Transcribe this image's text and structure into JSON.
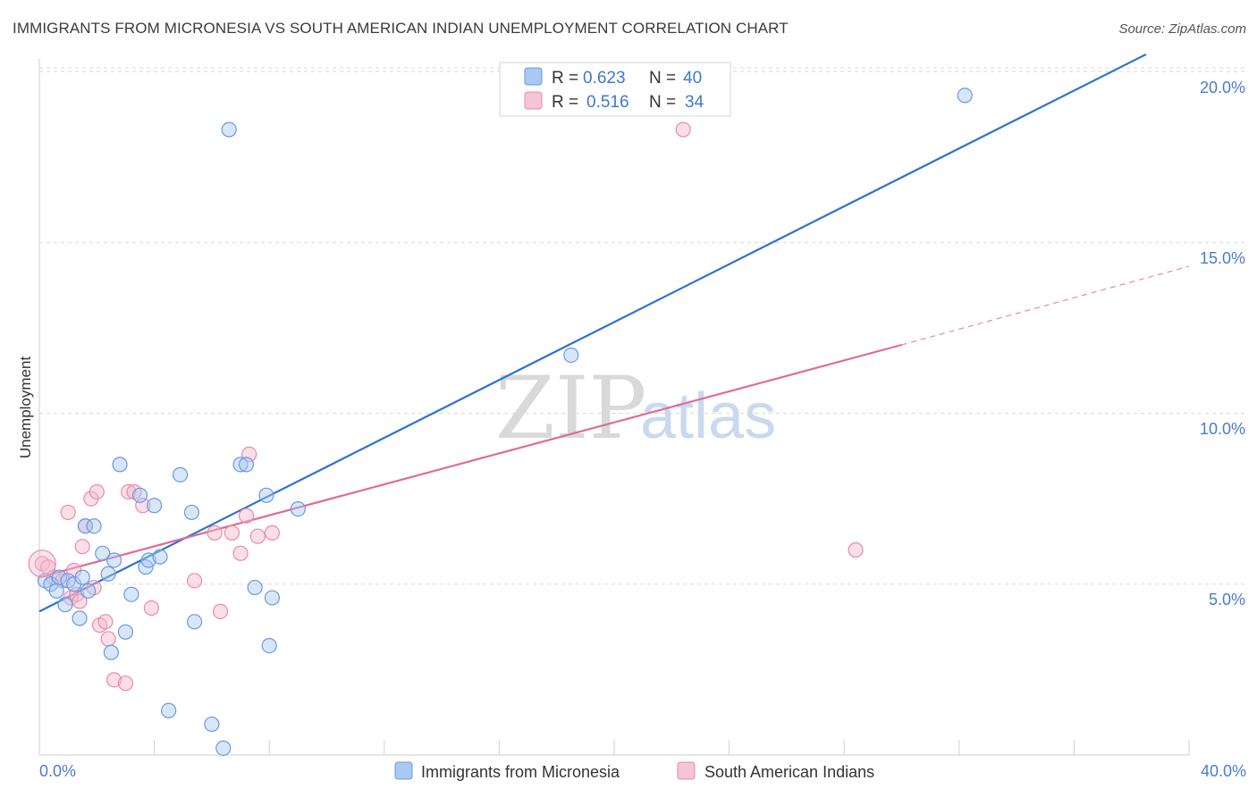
{
  "title": "IMMIGRANTS FROM MICRONESIA VS SOUTH AMERICAN INDIAN UNEMPLOYMENT CORRELATION CHART",
  "source": "Source: ZipAtlas.com",
  "watermark": {
    "part1": "ZIP",
    "part2": "atlas"
  },
  "colors": {
    "blue_fill": "#a9c8f2",
    "blue_stroke": "#6a9ae0",
    "blue_line": "#2f72cc",
    "pink_fill": "#f6b8cc",
    "pink_stroke": "#e98aa8",
    "pink_line": "#e06b96",
    "grid": "#d8d8d8",
    "tick_text": "#4a7bd1"
  },
  "legend": {
    "rows": [
      {
        "r_label": "R =",
        "r_value": "0.623",
        "n_label": "N =",
        "n_value": "40",
        "series": "blue"
      },
      {
        "r_label": "R =",
        "r_value": "0.516",
        "n_label": "N =",
        "n_value": "34",
        "series": "pink"
      }
    ]
  },
  "chart_data": {
    "type": "scatter",
    "title": "IMMIGRANTS FROM MICRONESIA VS SOUTH AMERICAN INDIAN UNEMPLOYMENT CORRELATION CHART",
    "xlabel": "",
    "ylabel": "Unemployment",
    "xlim": [
      0,
      40
    ],
    "ylim": [
      0,
      20.5
    ],
    "x_tick_labels": [
      "0.0%",
      "40.0%"
    ],
    "y_ticks": [
      5,
      10,
      15,
      20
    ],
    "y_tick_labels": [
      "5.0%",
      "10.0%",
      "15.0%",
      "20.0%"
    ],
    "grid": true,
    "legend_position": "bottom",
    "series": [
      {
        "name": "Immigrants from Micronesia",
        "color": "blue",
        "R": 0.623,
        "N": 40,
        "trendline": {
          "x": [
            0,
            38.5
          ],
          "y": [
            4.2,
            20.5
          ]
        },
        "points": [
          {
            "x": 0.2,
            "y": 5.1
          },
          {
            "x": 0.4,
            "y": 5.0
          },
          {
            "x": 0.6,
            "y": 4.8
          },
          {
            "x": 0.7,
            "y": 5.2
          },
          {
            "x": 0.9,
            "y": 4.4
          },
          {
            "x": 1.0,
            "y": 5.1
          },
          {
            "x": 1.2,
            "y": 5.0
          },
          {
            "x": 1.4,
            "y": 4.0
          },
          {
            "x": 1.5,
            "y": 5.2
          },
          {
            "x": 1.6,
            "y": 6.7
          },
          {
            "x": 1.7,
            "y": 4.8
          },
          {
            "x": 1.9,
            "y": 6.7
          },
          {
            "x": 2.2,
            "y": 5.9
          },
          {
            "x": 2.4,
            "y": 5.3
          },
          {
            "x": 2.5,
            "y": 3.0
          },
          {
            "x": 2.6,
            "y": 5.7
          },
          {
            "x": 2.8,
            "y": 8.5
          },
          {
            "x": 3.0,
            "y": 3.6
          },
          {
            "x": 3.2,
            "y": 4.7
          },
          {
            "x": 3.5,
            "y": 7.6
          },
          {
            "x": 3.7,
            "y": 5.5
          },
          {
            "x": 3.8,
            "y": 5.7
          },
          {
            "x": 4.0,
            "y": 7.3
          },
          {
            "x": 4.2,
            "y": 5.8
          },
          {
            "x": 4.5,
            "y": 1.3
          },
          {
            "x": 4.9,
            "y": 8.2
          },
          {
            "x": 5.3,
            "y": 7.1
          },
          {
            "x": 5.4,
            "y": 3.9
          },
          {
            "x": 6.0,
            "y": 0.9
          },
          {
            "x": 6.4,
            "y": 0.2
          },
          {
            "x": 6.6,
            "y": 18.3
          },
          {
            "x": 7.0,
            "y": 8.5
          },
          {
            "x": 7.2,
            "y": 8.5
          },
          {
            "x": 7.5,
            "y": 4.9
          },
          {
            "x": 7.9,
            "y": 7.6
          },
          {
            "x": 8.0,
            "y": 3.2
          },
          {
            "x": 8.1,
            "y": 4.6
          },
          {
            "x": 9.0,
            "y": 7.2
          },
          {
            "x": 18.5,
            "y": 11.7
          },
          {
            "x": 32.2,
            "y": 19.3
          }
        ]
      },
      {
        "name": "South American Indians",
        "color": "pink",
        "R": 0.516,
        "N": 34,
        "trendline": {
          "x": [
            0,
            30
          ],
          "y": [
            5.2,
            12.0
          ]
        },
        "trendline_dashed_extension": {
          "x": [
            30,
            40
          ],
          "y": [
            12.0,
            14.3
          ]
        },
        "points": [
          {
            "x": 0.1,
            "y": 5.6
          },
          {
            "x": 0.3,
            "y": 5.5
          },
          {
            "x": 0.5,
            "y": 5.2
          },
          {
            "x": 0.8,
            "y": 5.1
          },
          {
            "x": 1.0,
            "y": 7.1
          },
          {
            "x": 1.1,
            "y": 4.6
          },
          {
            "x": 1.2,
            "y": 5.4
          },
          {
            "x": 1.3,
            "y": 4.7
          },
          {
            "x": 1.4,
            "y": 4.5
          },
          {
            "x": 1.5,
            "y": 6.1
          },
          {
            "x": 1.6,
            "y": 6.7
          },
          {
            "x": 1.8,
            "y": 7.5
          },
          {
            "x": 1.9,
            "y": 4.9
          },
          {
            "x": 2.0,
            "y": 7.7
          },
          {
            "x": 2.1,
            "y": 3.8
          },
          {
            "x": 2.3,
            "y": 3.9
          },
          {
            "x": 2.4,
            "y": 3.4
          },
          {
            "x": 2.6,
            "y": 2.2
          },
          {
            "x": 3.0,
            "y": 2.1
          },
          {
            "x": 3.1,
            "y": 7.7
          },
          {
            "x": 3.3,
            "y": 7.7
          },
          {
            "x": 3.6,
            "y": 7.3
          },
          {
            "x": 3.9,
            "y": 4.3
          },
          {
            "x": 5.4,
            "y": 5.1
          },
          {
            "x": 6.1,
            "y": 6.5
          },
          {
            "x": 6.3,
            "y": 4.2
          },
          {
            "x": 6.7,
            "y": 6.5
          },
          {
            "x": 7.0,
            "y": 5.9
          },
          {
            "x": 7.2,
            "y": 7.0
          },
          {
            "x": 7.3,
            "y": 8.8
          },
          {
            "x": 7.6,
            "y": 6.4
          },
          {
            "x": 8.1,
            "y": 6.5
          },
          {
            "x": 22.4,
            "y": 18.3
          },
          {
            "x": 28.4,
            "y": 6.0
          }
        ]
      }
    ]
  }
}
